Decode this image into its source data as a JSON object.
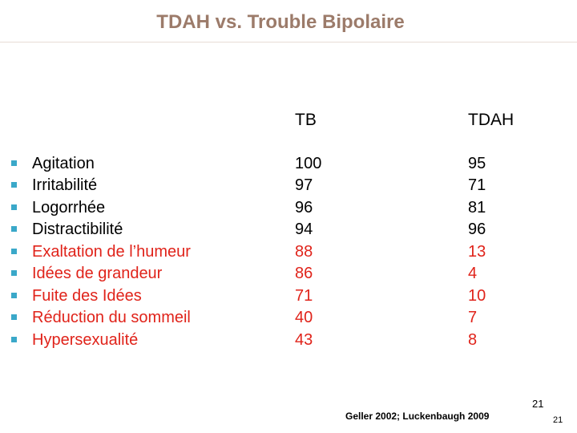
{
  "slide": {
    "title": "TDAH vs. Trouble Bipolaire",
    "headers": {
      "col1": "TB",
      "col2": "TDAH"
    },
    "rows": [
      {
        "label": "Agitation",
        "tb": "100",
        "tdah": "95",
        "color": "#000000"
      },
      {
        "label": "Irritabilité",
        "tb": "97",
        "tdah": "71",
        "color": "#000000"
      },
      {
        "label": "Logorrhée",
        "tb": "96",
        "tdah": "81",
        "color": "#000000"
      },
      {
        "label": "Distractibilité",
        "tb": "94",
        "tdah": "96",
        "color": "#000000"
      },
      {
        "label": "Exaltation de l’humeur",
        "tb": "88",
        "tdah": "13",
        "color": "#e0231a"
      },
      {
        "label": "Idées de grandeur",
        "tb": "86",
        "tdah": "4",
        "color": "#e0231a"
      },
      {
        "label": "Fuite des Idées",
        "tb": "71",
        "tdah": "10",
        "color": "#e0231a"
      },
      {
        "label": "Réduction du sommeil",
        "tb": "40",
        "tdah": "7",
        "color": "#e0231a"
      },
      {
        "label": "Hypersexualité",
        "tb": "43",
        "tdah": "8",
        "color": "#e0231a"
      }
    ],
    "page_number": "21",
    "citation": "Geller  2002; Luckenbaugh 2009",
    "footer_page_number": "21"
  },
  "colors": {
    "title": "#9c7b6a",
    "bullet": "#3aa8c9",
    "highlight": "#e0231a"
  }
}
